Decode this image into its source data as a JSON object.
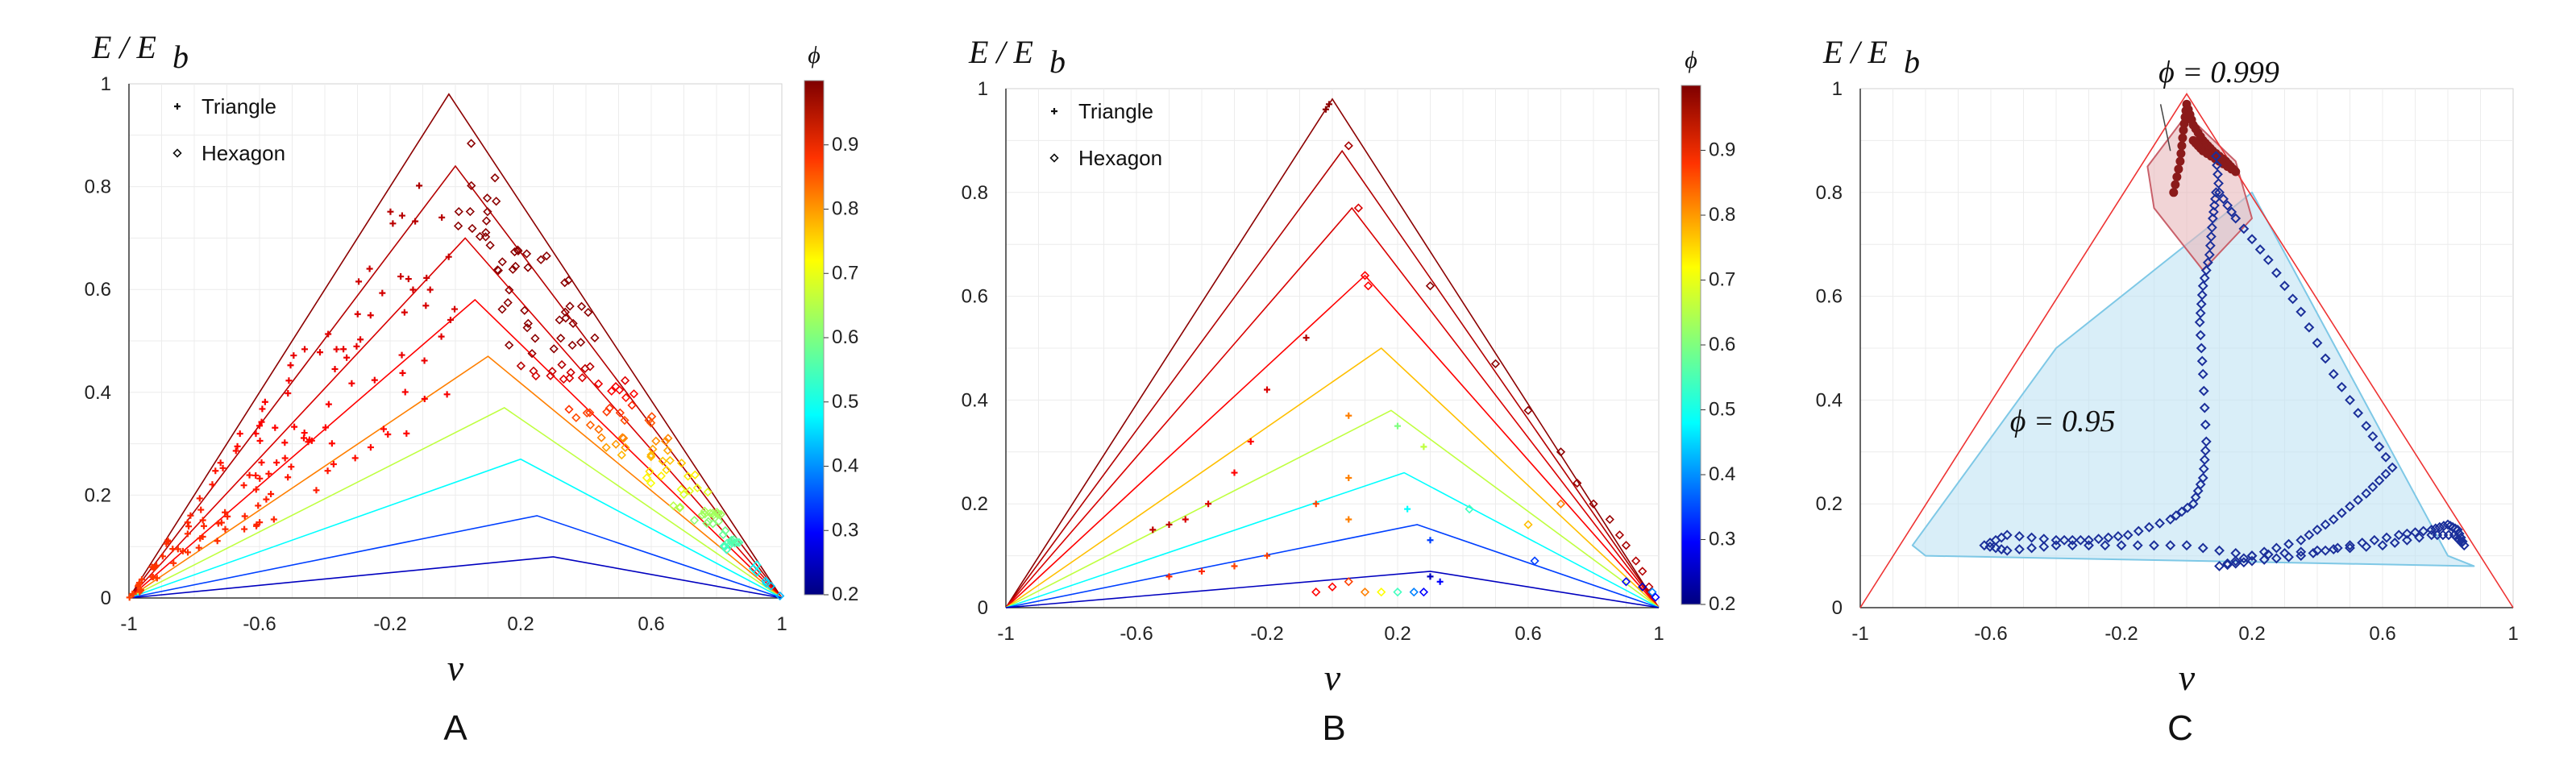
{
  "figure": {
    "panel_letters": [
      "A",
      "B",
      "C"
    ]
  },
  "chart_data": [
    {
      "type": "scatter",
      "panel": "A",
      "ylabel": "E / E_b",
      "ylabel_main": "E / E",
      "ylabel_sub": "b",
      "xlabel": "ν",
      "xlim": [
        -1,
        1
      ],
      "ylim": [
        0,
        1
      ],
      "xticks": [
        "-1",
        "-0.6",
        "-0.2",
        "0.2",
        "0.6",
        "1"
      ],
      "yticks": [
        "0",
        "0.2",
        "0.4",
        "0.6",
        "0.8",
        "1"
      ],
      "colorbar": {
        "label": "ϕ",
        "range": [
          0.2,
          1.0
        ],
        "ticks": [
          "0.2",
          "0.3",
          "0.4",
          "0.5",
          "0.6",
          "0.7",
          "0.8",
          "0.9"
        ]
      },
      "legend": [
        "Triangle",
        "Hexagon"
      ],
      "bound_lines": [
        {
          "phi": 0.99,
          "peak_x": -0.02,
          "peak_y": 0.98
        },
        {
          "phi": 0.96,
          "peak_x": 0.0,
          "peak_y": 0.84
        },
        {
          "phi": 0.93,
          "peak_x": 0.03,
          "peak_y": 0.7
        },
        {
          "phi": 0.9,
          "peak_x": 0.06,
          "peak_y": 0.58
        },
        {
          "phi": 0.8,
          "peak_x": 0.1,
          "peak_y": 0.47
        },
        {
          "phi": 0.65,
          "peak_x": 0.15,
          "peak_y": 0.37
        },
        {
          "phi": 0.5,
          "peak_x": 0.2,
          "peak_y": 0.27
        },
        {
          "phi": 0.35,
          "peak_x": 0.25,
          "peak_y": 0.16
        },
        {
          "phi": 0.25,
          "peak_x": 0.3,
          "peak_y": 0.08
        }
      ],
      "series": [
        {
          "name": "Triangle",
          "marker": "plus",
          "shape": "band",
          "base_x": 0.0,
          "base_y": 0.97,
          "phi_top": 0.99,
          "phi_bottom": 0.85,
          "count": 140
        },
        {
          "name": "Hexagon",
          "marker": "diamond",
          "shape": "rightband",
          "base_x": 0.0,
          "base_y": 0.95,
          "phi_top": 0.99,
          "phi_bottom": 0.3,
          "count": 150
        }
      ]
    },
    {
      "type": "scatter",
      "panel": "B",
      "ylabel": "E / E_b",
      "ylabel_main": "E / E",
      "ylabel_sub": "b",
      "xlabel": "ν",
      "xlim": [
        -1,
        1
      ],
      "ylim": [
        0,
        1
      ],
      "xticks": [
        "-1",
        "-0.6",
        "-0.2",
        "0.2",
        "0.6",
        "1"
      ],
      "yticks": [
        "0",
        "0.2",
        "0.4",
        "0.6",
        "0.8",
        "1"
      ],
      "colorbar": {
        "label": "ϕ",
        "range": [
          0.2,
          1.0
        ],
        "ticks": [
          "0.2",
          "0.3",
          "0.4",
          "0.5",
          "0.6",
          "0.7",
          "0.8",
          "0.9"
        ]
      },
      "legend": [
        "Triangle",
        "Hexagon"
      ],
      "bound_lines": [
        {
          "phi": 0.99,
          "peak_x": 0.0,
          "peak_y": 0.98
        },
        {
          "phi": 0.96,
          "peak_x": 0.03,
          "peak_y": 0.88
        },
        {
          "phi": 0.93,
          "peak_x": 0.06,
          "peak_y": 0.77
        },
        {
          "phi": 0.9,
          "peak_x": 0.1,
          "peak_y": 0.64
        },
        {
          "phi": 0.75,
          "peak_x": 0.15,
          "peak_y": 0.5
        },
        {
          "phi": 0.65,
          "peak_x": 0.18,
          "peak_y": 0.38
        },
        {
          "phi": 0.5,
          "peak_x": 0.22,
          "peak_y": 0.26
        },
        {
          "phi": 0.35,
          "peak_x": 0.26,
          "peak_y": 0.16
        },
        {
          "phi": 0.25,
          "peak_x": 0.3,
          "peak_y": 0.07
        }
      ],
      "series": [
        {
          "name": "Triangle",
          "marker": "plus",
          "points": [
            {
              "x": -0.01,
              "y": 0.97,
              "phi": 0.99
            },
            {
              "x": -0.02,
              "y": 0.96,
              "phi": 0.99
            },
            {
              "x": -0.08,
              "y": 0.52,
              "phi": 0.96
            },
            {
              "x": -0.2,
              "y": 0.42,
              "phi": 0.93
            },
            {
              "x": -0.25,
              "y": 0.32,
              "phi": 0.9
            },
            {
              "x": -0.3,
              "y": 0.26,
              "phi": 0.9
            },
            {
              "x": -0.38,
              "y": 0.2,
              "phi": 0.93
            },
            {
              "x": -0.45,
              "y": 0.17,
              "phi": 0.93
            },
            {
              "x": -0.5,
              "y": 0.16,
              "phi": 0.95
            },
            {
              "x": -0.55,
              "y": 0.15,
              "phi": 0.95
            },
            {
              "x": -0.2,
              "y": 0.1,
              "phi": 0.85
            },
            {
              "x": -0.3,
              "y": 0.08,
              "phi": 0.85
            },
            {
              "x": -0.4,
              "y": 0.07,
              "phi": 0.87
            },
            {
              "x": -0.5,
              "y": 0.06,
              "phi": 0.87
            },
            {
              "x": -0.05,
              "y": 0.2,
              "phi": 0.85
            },
            {
              "x": 0.05,
              "y": 0.37,
              "phi": 0.8
            },
            {
              "x": 0.05,
              "y": 0.25,
              "phi": 0.8
            },
            {
              "x": 0.05,
              "y": 0.17,
              "phi": 0.8
            },
            {
              "x": 0.2,
              "y": 0.35,
              "phi": 0.6
            },
            {
              "x": 0.28,
              "y": 0.31,
              "phi": 0.65
            },
            {
              "x": 0.23,
              "y": 0.19,
              "phi": 0.5
            },
            {
              "x": 0.3,
              "y": 0.13,
              "phi": 0.35
            },
            {
              "x": 0.3,
              "y": 0.06,
              "phi": 0.25
            },
            {
              "x": 0.33,
              "y": 0.05,
              "phi": 0.3
            }
          ]
        },
        {
          "name": "Hexagon",
          "marker": "diamond",
          "points": [
            {
              "x": 0.05,
              "y": 0.89,
              "phi": 0.97
            },
            {
              "x": 0.08,
              "y": 0.77,
              "phi": 0.93
            },
            {
              "x": 0.1,
              "y": 0.64,
              "phi": 0.9
            },
            {
              "x": 0.11,
              "y": 0.62,
              "phi": 0.9
            },
            {
              "x": 0.3,
              "y": 0.62,
              "phi": 0.99
            },
            {
              "x": 0.5,
              "y": 0.47,
              "phi": 0.99
            },
            {
              "x": 0.6,
              "y": 0.38,
              "phi": 0.99
            },
            {
              "x": 0.7,
              "y": 0.3,
              "phi": 0.99
            },
            {
              "x": 0.75,
              "y": 0.24,
              "phi": 0.98
            },
            {
              "x": 0.8,
              "y": 0.2,
              "phi": 0.98
            },
            {
              "x": 0.85,
              "y": 0.17,
              "phi": 0.98
            },
            {
              "x": 0.88,
              "y": 0.14,
              "phi": 0.97
            },
            {
              "x": 0.9,
              "y": 0.12,
              "phi": 0.97
            },
            {
              "x": 0.93,
              "y": 0.09,
              "phi": 0.96
            },
            {
              "x": 0.95,
              "y": 0.07,
              "phi": 0.96
            },
            {
              "x": 0.97,
              "y": 0.04,
              "phi": 0.95
            },
            {
              "x": 0.98,
              "y": 0.03,
              "phi": 0.4
            },
            {
              "x": 0.99,
              "y": 0.02,
              "phi": 0.3
            },
            {
              "x": 0.7,
              "y": 0.2,
              "phi": 0.8
            },
            {
              "x": 0.6,
              "y": 0.16,
              "phi": 0.75
            },
            {
              "x": 0.42,
              "y": 0.19,
              "phi": 0.55
            },
            {
              "x": 0.62,
              "y": 0.09,
              "phi": 0.35
            },
            {
              "x": 0.9,
              "y": 0.05,
              "phi": 0.3
            },
            {
              "x": 0.95,
              "y": 0.04,
              "phi": 0.25
            },
            {
              "x": 0.0,
              "y": 0.04,
              "phi": 0.9
            },
            {
              "x": -0.05,
              "y": 0.03,
              "phi": 0.9
            },
            {
              "x": 0.05,
              "y": 0.05,
              "phi": 0.85
            },
            {
              "x": 0.1,
              "y": 0.03,
              "phi": 0.8
            },
            {
              "x": 0.15,
              "y": 0.03,
              "phi": 0.7
            },
            {
              "x": 0.2,
              "y": 0.03,
              "phi": 0.55
            },
            {
              "x": 0.25,
              "y": 0.03,
              "phi": 0.4
            },
            {
              "x": 0.28,
              "y": 0.03,
              "phi": 0.3
            }
          ]
        }
      ]
    },
    {
      "type": "scatter",
      "panel": "C",
      "ylabel": "E / E_b",
      "ylabel_main": "E / E",
      "ylabel_sub": "b",
      "xlabel": "ν",
      "xlim": [
        -1,
        1
      ],
      "ylim": [
        0,
        1
      ],
      "xticks": [
        "-1",
        "-0.6",
        "-0.2",
        "0.2",
        "0.6",
        "1"
      ],
      "yticks": [
        "0",
        "0.2",
        "0.4",
        "0.6",
        "0.8",
        "1"
      ],
      "regions": [
        {
          "label": "ϕ = 0.999",
          "fill": "#e8b7bb",
          "stroke": "#c9606a"
        },
        {
          "label": "ϕ = 0.95",
          "fill": "#bfe3f4",
          "stroke": "#7ec8e6"
        }
      ],
      "region_polygons": [
        [
          [
            -0.12,
            0.85
          ],
          [
            0.0,
            0.95
          ],
          [
            0.15,
            0.86
          ],
          [
            0.2,
            0.75
          ],
          [
            0.05,
            0.65
          ],
          [
            -0.1,
            0.77
          ]
        ],
        [
          [
            0.2,
            0.8
          ],
          [
            0.8,
            0.1
          ],
          [
            0.88,
            0.08
          ],
          [
            -0.8,
            0.1
          ],
          [
            -0.84,
            0.12
          ],
          [
            -0.4,
            0.5
          ]
        ]
      ],
      "bound_lines": [
        {
          "phi": 0.999,
          "peak_x": 0.0,
          "peak_y": 0.99
        }
      ],
      "series": [
        {
          "name": "phi = 0.999",
          "color": "#8b1a1a",
          "marker": "filled-dot",
          "path": [
            [
              -0.04,
              0.8
            ],
            [
              -0.02,
              0.86
            ],
            [
              -0.01,
              0.92
            ],
            [
              0.0,
              0.97
            ],
            [
              0.02,
              0.93
            ],
            [
              0.05,
              0.9
            ],
            [
              0.08,
              0.88
            ],
            [
              0.12,
              0.86
            ],
            [
              0.15,
              0.84
            ],
            [
              0.1,
              0.86
            ],
            [
              0.05,
              0.88
            ],
            [
              0.02,
              0.9
            ]
          ]
        },
        {
          "name": "phi = 0.95",
          "color": "#1b2f9a",
          "marker": "open-diamond",
          "path": [
            [
              0.09,
              0.87
            ],
            [
              0.1,
              0.8
            ],
            [
              0.15,
              0.75
            ],
            [
              0.25,
              0.67
            ],
            [
              0.35,
              0.57
            ],
            [
              0.45,
              0.45
            ],
            [
              0.55,
              0.35
            ],
            [
              0.63,
              0.27
            ],
            [
              0.55,
              0.22
            ],
            [
              0.45,
              0.17
            ],
            [
              0.35,
              0.13
            ],
            [
              0.2,
              0.1
            ],
            [
              0.1,
              0.08
            ],
            [
              0.2,
              0.09
            ],
            [
              0.35,
              0.1
            ],
            [
              0.5,
              0.12
            ],
            [
              0.65,
              0.14
            ],
            [
              0.75,
              0.15
            ],
            [
              0.8,
              0.16
            ],
            [
              0.83,
              0.15
            ],
            [
              0.85,
              0.12
            ],
            [
              0.82,
              0.14
            ],
            [
              0.75,
              0.14
            ],
            [
              0.6,
              0.12
            ],
            [
              0.4,
              0.11
            ],
            [
              0.2,
              0.1
            ],
            [
              0.0,
              0.12
            ],
            [
              -0.2,
              0.12
            ],
            [
              -0.4,
              0.12
            ],
            [
              -0.55,
              0.11
            ],
            [
              -0.62,
              0.12
            ],
            [
              -0.55,
              0.14
            ],
            [
              -0.4,
              0.13
            ],
            [
              -0.3,
              0.13
            ],
            [
              -0.18,
              0.14
            ],
            [
              -0.05,
              0.17
            ],
            [
              0.02,
              0.2
            ],
            [
              0.05,
              0.25
            ],
            [
              0.06,
              0.32
            ],
            [
              0.05,
              0.45
            ],
            [
              0.04,
              0.55
            ],
            [
              0.05,
              0.62
            ],
            [
              0.07,
              0.68
            ],
            [
              0.08,
              0.75
            ],
            [
              0.09,
              0.8
            ]
          ]
        }
      ]
    }
  ]
}
